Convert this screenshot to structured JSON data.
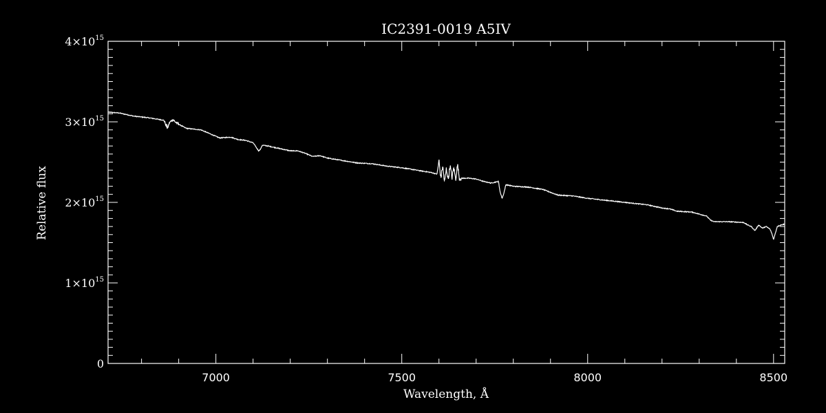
{
  "chart_data": {
    "type": "line",
    "title": "IC2391-0019   A5IV",
    "xlabel": "Wavelength, Å",
    "ylabel": "Relative flux",
    "xlim": [
      6710,
      8530
    ],
    "ylim": [
      0,
      4000000000000000.0
    ],
    "x_ticks": [
      {
        "value": 7000,
        "label": "7000"
      },
      {
        "value": 7500,
        "label": "7500"
      },
      {
        "value": 8000,
        "label": "8000"
      },
      {
        "value": 8500,
        "label": "8500"
      }
    ],
    "y_ticks": [
      {
        "value": 0,
        "mantissa": "0",
        "exponent": ""
      },
      {
        "value": 1000000000000000.0,
        "mantissa": "1×10",
        "exponent": "15"
      },
      {
        "value": 2000000000000000.0,
        "mantissa": "2×10",
        "exponent": "15"
      },
      {
        "value": 3000000000000000.0,
        "mantissa": "3×10",
        "exponent": "15"
      },
      {
        "value": 4000000000000000.0,
        "mantissa": "4×10",
        "exponent": "15"
      }
    ],
    "x_minor_step": 100,
    "y_minor_step": 100000000000000.0,
    "line_color": "#ffffff",
    "background": "#000000",
    "series": [
      {
        "x": [
          6710,
          6740,
          6780,
          6820,
          6860,
          6870,
          6875,
          6885,
          6890,
          6900,
          6920,
          6960,
          7000,
          7010,
          7040,
          7060,
          7080,
          7100,
          7115,
          7120,
          7125,
          7140,
          7160,
          7180,
          7200,
          7220,
          7240,
          7260,
          7280,
          7300,
          7340,
          7380,
          7420,
          7460,
          7500,
          7540,
          7580,
          7595,
          7600,
          7605,
          7610,
          7615,
          7620,
          7625,
          7630,
          7635,
          7640,
          7645,
          7650,
          7655,
          7660,
          7680,
          7700,
          7720,
          7740,
          7760,
          7765,
          7770,
          7775,
          7780,
          7800,
          7840,
          7880,
          7920,
          7960,
          8000,
          8040,
          8080,
          8120,
          8160,
          8200,
          8220,
          8240,
          8280,
          8320,
          8330,
          8340,
          8380,
          8420,
          8430,
          8440,
          8450,
          8460,
          8470,
          8480,
          8490,
          8495,
          8500,
          8505,
          8510,
          8520,
          8530
        ],
        "y": [
          3120000000000000.0,
          3110000000000000.0,
          3070000000000000.0,
          3050000000000000.0,
          3020000000000000.0,
          2920000000000000.0,
          2990000000000000.0,
          3030000000000000.0,
          3000000000000000.0,
          2970000000000000.0,
          2920000000000000.0,
          2900000000000000.0,
          2820000000000000.0,
          2800000000000000.0,
          2810000000000000.0,
          2780000000000000.0,
          2770000000000000.0,
          2740000000000000.0,
          2640000000000000.0,
          2660000000000000.0,
          2710000000000000.0,
          2700000000000000.0,
          2680000000000000.0,
          2660000000000000.0,
          2640000000000000.0,
          2640000000000000.0,
          2610000000000000.0,
          2570000000000000.0,
          2580000000000000.0,
          2550000000000000.0,
          2520000000000000.0,
          2490000000000000.0,
          2480000000000000.0,
          2450000000000000.0,
          2430000000000000.0,
          2400000000000000.0,
          2370000000000000.0,
          2350000000000000.0,
          2520000000000000.0,
          2300000000000000.0,
          2450000000000000.0,
          2250000000000000.0,
          2420000000000000.0,
          2280000000000000.0,
          2460000000000000.0,
          2300000000000000.0,
          2440000000000000.0,
          2280000000000000.0,
          2470000000000000.0,
          2300000000000000.0,
          2300000000000000.0,
          2300000000000000.0,
          2290000000000000.0,
          2260000000000000.0,
          2240000000000000.0,
          2260000000000000.0,
          2120000000000000.0,
          2050000000000000.0,
          2120000000000000.0,
          2220000000000000.0,
          2200000000000000.0,
          2190000000000000.0,
          2160000000000000.0,
          2090000000000000.0,
          2080000000000000.0,
          2050000000000000.0,
          2030000000000000.0,
          2010000000000000.0,
          1990000000000000.0,
          1970000000000000.0,
          1930000000000000.0,
          1920000000000000.0,
          1890000000000000.0,
          1880000000000000.0,
          1830000000000000.0,
          1780000000000000.0,
          1760000000000000.0,
          1760000000000000.0,
          1750000000000000.0,
          1720000000000000.0,
          1700000000000000.0,
          1650000000000000.0,
          1720000000000000.0,
          1680000000000000.0,
          1700000000000000.0,
          1670000000000000.0,
          1620000000000000.0,
          1540000000000000.0,
          1620000000000000.0,
          1700000000000000.0,
          1720000000000000.0,
          1730000000000000.0
        ]
      }
    ]
  }
}
